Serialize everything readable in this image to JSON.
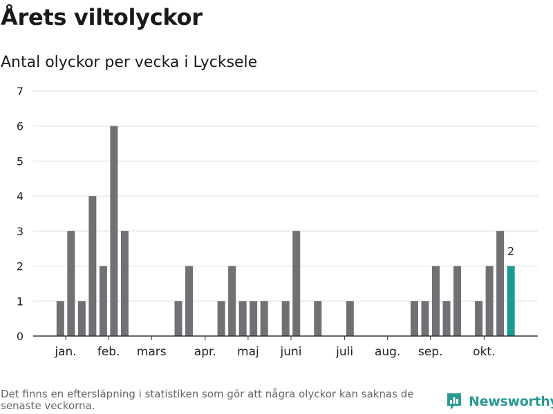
{
  "header": {
    "title": "Årets viltolyckor",
    "subtitle": "Antal olyckor per vecka i Lycksele"
  },
  "footer": {
    "note": "Det finns en eftersläpning i statistiken som gör att några olyckor kan saknas de senaste veckorna.",
    "brand": "Newsworthy"
  },
  "colors": {
    "bar": "#717075",
    "highlight": "#1a9a92",
    "grid": "#dcdcdc",
    "axis": "#333333",
    "brand": "#2a9a92"
  },
  "chart_data": {
    "type": "bar",
    "title": "Årets viltolyckor",
    "subtitle": "Antal olyckor per vecka i Lycksele",
    "xlabel": "",
    "ylabel": "",
    "ylim": [
      0,
      7
    ],
    "yticks": [
      0,
      1,
      2,
      3,
      4,
      5,
      6,
      7
    ],
    "grid": true,
    "weeks": [
      1,
      2,
      3,
      4,
      5,
      6,
      7,
      8,
      9,
      10,
      11,
      12,
      13,
      14,
      15,
      16,
      17,
      18,
      19,
      20,
      21,
      22,
      23,
      24,
      25,
      26,
      27,
      28,
      29,
      30,
      31,
      32,
      33,
      34,
      35,
      36,
      37,
      38,
      39,
      40,
      41,
      42,
      43
    ],
    "values": [
      1,
      3,
      1,
      4,
      2,
      6,
      3,
      0,
      0,
      0,
      0,
      1,
      2,
      0,
      0,
      1,
      2,
      1,
      1,
      1,
      0,
      1,
      3,
      0,
      1,
      0,
      0,
      1,
      0,
      0,
      0,
      0,
      0,
      1,
      1,
      2,
      1,
      2,
      0,
      1,
      2,
      3,
      2
    ],
    "highlight_index": 42,
    "highlight_label": "2",
    "month_ticks": [
      {
        "label": "jan.",
        "week": 1.5
      },
      {
        "label": "feb.",
        "week": 5.5
      },
      {
        "label": "mars",
        "week": 9.5
      },
      {
        "label": "apr.",
        "week": 14.5
      },
      {
        "label": "maj",
        "week": 18.5
      },
      {
        "label": "juni",
        "week": 22.5
      },
      {
        "label": "juli",
        "week": 27.5
      },
      {
        "label": "aug.",
        "week": 31.5
      },
      {
        "label": "sep.",
        "week": 35.5
      },
      {
        "label": "okt.",
        "week": 40.5
      }
    ]
  }
}
